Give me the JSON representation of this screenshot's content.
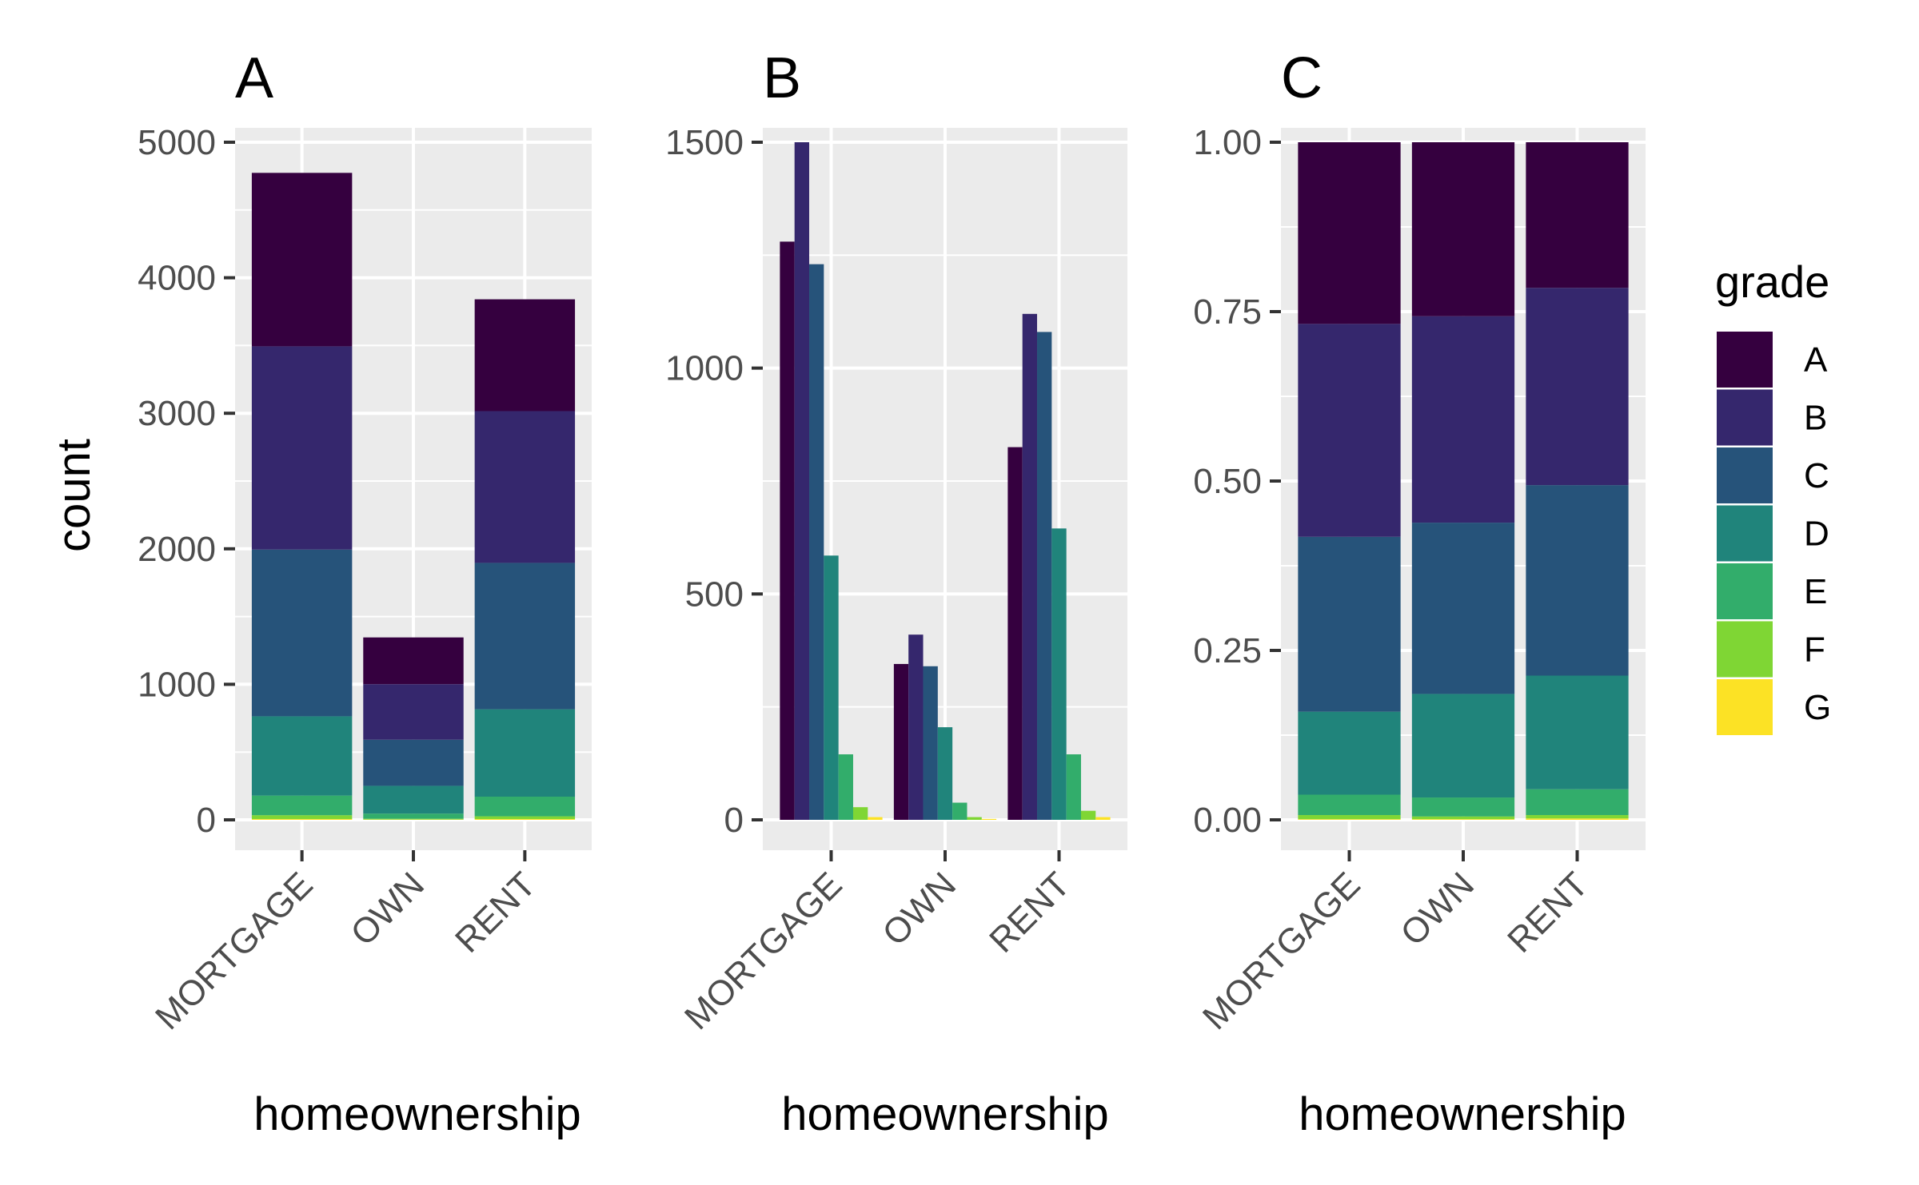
{
  "chart_data": [
    {
      "panel": "A",
      "type": "bar",
      "position": "stack",
      "title": "A",
      "xlabel": "homeownership",
      "ylabel": "count",
      "categories": [
        "MORTGAGE",
        "OWN",
        "RENT"
      ],
      "ylim": [
        0,
        5000
      ],
      "yticks": [
        0,
        1000,
        2000,
        3000,
        4000,
        5000
      ],
      "ytick_labels": [
        "0",
        "1000",
        "2000",
        "3000",
        "4000",
        "5000"
      ],
      "series": [
        {
          "name": "A",
          "values": [
            1280,
            345,
            825
          ]
        },
        {
          "name": "B",
          "values": [
            1500,
            410,
            1120
          ]
        },
        {
          "name": "C",
          "values": [
            1230,
            340,
            1080
          ]
        },
        {
          "name": "D",
          "values": [
            585,
            205,
            645
          ]
        },
        {
          "name": "E",
          "values": [
            145,
            38,
            145
          ]
        },
        {
          "name": "F",
          "values": [
            28,
            6,
            20
          ]
        },
        {
          "name": "G",
          "values": [
            6,
            2,
            6
          ]
        }
      ]
    },
    {
      "panel": "B",
      "type": "bar",
      "position": "dodge",
      "title": "B",
      "xlabel": "homeownership",
      "ylabel": "",
      "categories": [
        "MORTGAGE",
        "OWN",
        "RENT"
      ],
      "ylim": [
        0,
        1500
      ],
      "yticks": [
        0,
        500,
        1000,
        1500
      ],
      "ytick_labels": [
        "0",
        "500",
        "1000",
        "1500"
      ],
      "series": [
        {
          "name": "A",
          "values": [
            1280,
            345,
            825
          ]
        },
        {
          "name": "B",
          "values": [
            1500,
            410,
            1120
          ]
        },
        {
          "name": "C",
          "values": [
            1230,
            340,
            1080
          ]
        },
        {
          "name": "D",
          "values": [
            585,
            205,
            645
          ]
        },
        {
          "name": "E",
          "values": [
            145,
            38,
            145
          ]
        },
        {
          "name": "F",
          "values": [
            28,
            6,
            20
          ]
        },
        {
          "name": "G",
          "values": [
            6,
            2,
            6
          ]
        }
      ]
    },
    {
      "panel": "C",
      "type": "bar",
      "position": "fill",
      "title": "C",
      "xlabel": "homeownership",
      "ylabel": "",
      "categories": [
        "MORTGAGE",
        "OWN",
        "RENT"
      ],
      "ylim": [
        0,
        1
      ],
      "yticks": [
        0,
        0.25,
        0.5,
        0.75,
        1
      ],
      "ytick_labels": [
        "0.00",
        "0.25",
        "0.50",
        "0.75",
        "1.00"
      ],
      "series": [
        {
          "name": "A",
          "values": [
            0.267,
            0.257,
            0.214
          ]
        },
        {
          "name": "B",
          "values": [
            0.313,
            0.305,
            0.29
          ]
        },
        {
          "name": "C",
          "values": [
            0.257,
            0.253,
            0.28
          ]
        },
        {
          "name": "D",
          "values": [
            0.122,
            0.153,
            0.167
          ]
        },
        {
          "name": "E",
          "values": [
            0.03,
            0.028,
            0.038
          ]
        },
        {
          "name": "F",
          "values": [
            0.006,
            0.004,
            0.005
          ]
        },
        {
          "name": "G",
          "values": [
            0.001,
            0.001,
            0.002
          ]
        }
      ]
    }
  ],
  "legend": {
    "title": "grade",
    "entries": [
      "A",
      "B",
      "C",
      "D",
      "E",
      "F",
      "G"
    ],
    "placement": "right"
  },
  "colors": {
    "A": "#35003f",
    "B": "#35276d",
    "C": "#26537a",
    "D": "#20847b",
    "E": "#32ad6b",
    "F": "#7fd634",
    "G": "#fce225",
    "panel_background": "#ebebeb",
    "grid": "#ffffff",
    "tick_text": "#4d4d4d",
    "tick_mark": "#333333"
  }
}
